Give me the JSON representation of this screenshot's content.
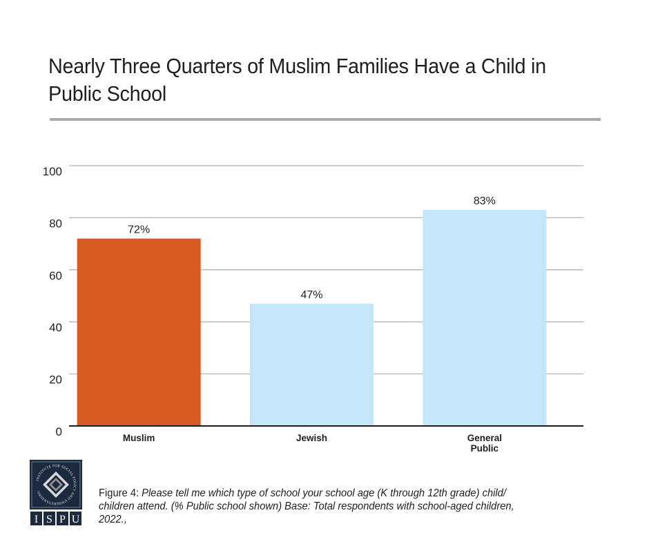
{
  "title": "Nearly Three Quarters of Muslim Families Have a Child in Public School",
  "caption": {
    "lead": "Figure 4:",
    "body": "Please tell me which type of school your school age (K through 12th grade) child/ children attend. (% Public school shown) Base: Total respondents with school-aged children, 2022.,"
  },
  "logo": {
    "ring_text": "INSTITUTE FOR SOCIAL POLICY AND UNDERSTANDING",
    "letters": [
      "I",
      "S",
      "P",
      "U"
    ]
  },
  "chart_data": {
    "type": "bar",
    "title": "Nearly Three Quarters of Muslim Families Have a Child in Public School",
    "xlabel": "",
    "ylabel": "",
    "categories": [
      "Muslim",
      "Jewish",
      "General Public"
    ],
    "category_lines": [
      [
        "Muslim"
      ],
      [
        "Jewish"
      ],
      [
        "General",
        "Public"
      ]
    ],
    "values": [
      72,
      47,
      83
    ],
    "data_labels": [
      "72%",
      "47%",
      "83%"
    ],
    "colors": [
      "#d95b24",
      "#c4e6f8",
      "#c4e6f8"
    ],
    "ylim": [
      0,
      100
    ],
    "yticks": [
      0,
      20,
      40,
      60,
      80,
      100
    ],
    "grid": true,
    "legend": "none"
  }
}
